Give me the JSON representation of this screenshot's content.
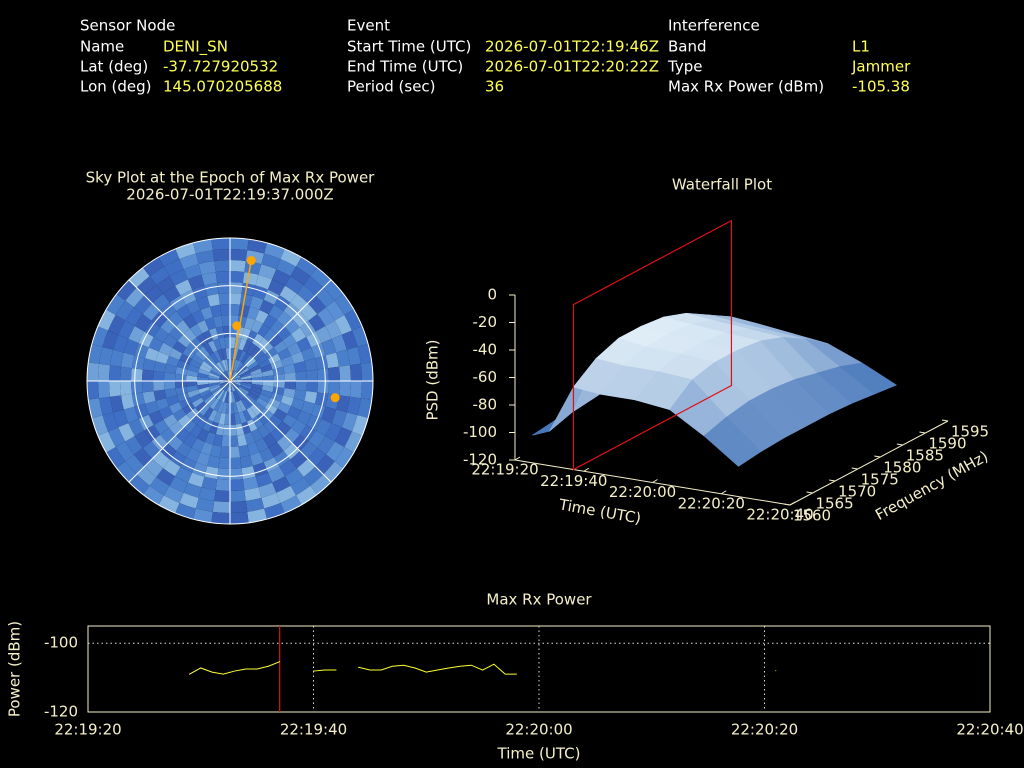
{
  "header": {
    "sensor": {
      "title": "Sensor Node",
      "rows": [
        {
          "label": "Name",
          "value": "DENI_SN"
        },
        {
          "label": "Lat (deg)",
          "value": -37.727920532
        },
        {
          "label": "Lon (deg)",
          "value": 145.070205688
        }
      ]
    },
    "event": {
      "title": "Event",
      "rows": [
        {
          "label": "Start Time (UTC)",
          "value": "2026-07-01T22:19:46Z"
        },
        {
          "label": "End Time (UTC)",
          "value": "2026-07-01T22:20:22Z"
        },
        {
          "label": "Period (sec)",
          "value": 36
        }
      ]
    },
    "interference": {
      "title": "Interference",
      "rows": [
        {
          "label": "Band",
          "value": "L1"
        },
        {
          "label": "Type",
          "value": "Jammer"
        },
        {
          "label": "Max Rx Power (dBm)",
          "value": -105.38
        }
      ]
    }
  },
  "chart_data": [
    {
      "type": "polar",
      "title": "Sky Plot at the Epoch of Max Rx Power",
      "subtitle": "2026-07-01T22:19:37.000Z",
      "rlim": [
        90,
        0
      ],
      "rticks": [
        0,
        30,
        60
      ],
      "thetaticks": [
        0,
        45,
        90,
        135,
        180,
        225,
        270,
        315
      ],
      "points": {
        "az": [
          10,
          7,
          99
        ],
        "el": [
          13,
          55,
          23
        ],
        "color": "#ffa500"
      },
      "direction": {
        "az": 10,
        "el": 13,
        "color": "#ffa500"
      }
    },
    {
      "type": "surface3d",
      "title": "Waterfall Plot",
      "xlabel": "Time (UTC)",
      "ylabel": "Frequency (MHz)",
      "zlabel": "PSD (dBm)",
      "xlim": [
        "22:19:20",
        "22:20:40"
      ],
      "xticks": [
        "22:19:20",
        "22:19:40",
        "22:20:00",
        "22:20:20",
        "22:20:40"
      ],
      "ylim": [
        1560,
        1595
      ],
      "yticks": [
        1560,
        1565,
        1570,
        1575,
        1580,
        1585,
        1590,
        1595
      ],
      "zlim": [
        -120,
        0
      ],
      "zticks": [
        0,
        -20,
        -40,
        -60,
        -80,
        -100,
        -120
      ],
      "x": [
        "22:19:25",
        "22:19:30",
        "22:19:37",
        "22:19:45",
        "22:19:55",
        "22:20:05",
        "22:20:15",
        "22:20:25"
      ],
      "y": [
        1560,
        1565,
        1570,
        1575,
        1580,
        1585,
        1590,
        1595
      ],
      "z": [
        [
          -100,
          -98,
          -97,
          -96,
          -95,
          -96,
          -98,
          -100
        ],
        [
          -95,
          -90,
          -88,
          -86,
          -85,
          -86,
          -88,
          -92
        ],
        [
          -60,
          -48,
          -42,
          -42,
          -44,
          -50,
          -60,
          -70
        ],
        [
          -62,
          -50,
          -45,
          -44,
          -46,
          -52,
          -62,
          -72
        ],
        [
          -62,
          -50,
          -46,
          -46,
          -48,
          -54,
          -64,
          -75
        ],
        [
          -65,
          -52,
          -48,
          -48,
          -50,
          -56,
          -66,
          -78
        ],
        [
          -80,
          -75,
          -72,
          -72,
          -74,
          -78,
          -82,
          -88
        ],
        [
          -98,
          -96,
          -95,
          -95,
          -95,
          -96,
          -98,
          -100
        ]
      ],
      "marker_time": "22:19:37",
      "marker_color": "#dd1111"
    },
    {
      "type": "line",
      "title": "Max Rx Power",
      "xlabel": "Time (UTC)",
      "ylabel": "Power (dBm)",
      "xlim": [
        "22:19:20",
        "22:20:40"
      ],
      "xticks": [
        "22:19:20",
        "22:19:40",
        "22:20:00",
        "22:20:20",
        "22:20:40"
      ],
      "ylim": [
        -120,
        -95
      ],
      "yticks": [
        -120,
        -100
      ],
      "grid": true,
      "x": [
        "22:19:29",
        "22:19:30",
        "22:19:31",
        "22:19:32",
        "22:19:33",
        "22:19:34",
        "22:19:35",
        "22:19:36",
        "22:19:37",
        "22:19:38",
        "22:19:40",
        "22:19:41",
        "22:19:42",
        "22:19:43",
        "22:19:44",
        "22:19:45",
        "22:19:46",
        "22:19:47",
        "22:19:48",
        "22:19:49",
        "22:19:50",
        "22:19:51",
        "22:19:52",
        "22:19:53",
        "22:19:54",
        "22:19:55",
        "22:19:56",
        "22:19:57",
        "22:19:58",
        "22:19:59",
        "22:20:21"
      ],
      "values": [
        -109,
        -107.2,
        -108.4,
        -109,
        -108.1,
        -107.5,
        -107.5,
        -106.7,
        -105.38,
        null,
        -108.1,
        -107.8,
        -107.8,
        null,
        -107,
        -107.8,
        -107.8,
        -106.7,
        -106.4,
        -107.2,
        -108.4,
        -107.8,
        -107.2,
        -106.7,
        -106.4,
        -107.8,
        -106.1,
        -109,
        -109,
        null,
        -108
      ],
      "color": "#ffff33",
      "marker_time": "22:19:37",
      "marker_color": "#dd1111"
    }
  ]
}
